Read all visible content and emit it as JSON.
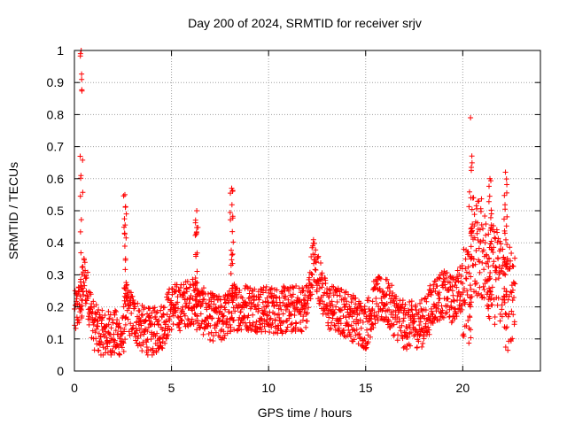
{
  "chart_data": {
    "type": "scatter",
    "title": "Day 200 of 2024, SRMTID for receiver srjv",
    "xlabel": "GPS time / hours",
    "ylabel": "SRMTID / TECUs",
    "xlim": [
      0,
      24
    ],
    "ylim": [
      0,
      1
    ],
    "x_ticks": [
      0,
      5,
      10,
      15,
      20
    ],
    "x_tick_labels": [
      "0",
      "5",
      "10",
      "15",
      "20"
    ],
    "y_ticks": [
      0,
      0.1,
      0.2,
      0.3,
      0.4,
      0.5,
      0.6,
      0.7,
      0.8,
      0.9,
      1
    ],
    "y_tick_labels": [
      "0",
      "0.1",
      "0.2",
      "0.3",
      "0.4",
      "0.5",
      "0.6",
      "0.7",
      "0.8",
      "0.9",
      "1"
    ],
    "grid": true,
    "marker": "+",
    "marker_color": "#ff0000",
    "series": [
      {
        "name": "SRMTID",
        "approx_envelope": [
          {
            "x": 0.0,
            "y": 0.17
          },
          {
            "x": 0.3,
            "y": 0.22
          },
          {
            "x": 0.35,
            "y": 1.0
          },
          {
            "x": 0.5,
            "y": 0.3
          },
          {
            "x": 1.0,
            "y": 0.14
          },
          {
            "x": 1.5,
            "y": 0.11
          },
          {
            "x": 2.0,
            "y": 0.12
          },
          {
            "x": 2.5,
            "y": 0.1
          },
          {
            "x": 2.65,
            "y": 0.55
          },
          {
            "x": 3.0,
            "y": 0.17
          },
          {
            "x": 3.5,
            "y": 0.13
          },
          {
            "x": 4.0,
            "y": 0.12
          },
          {
            "x": 4.5,
            "y": 0.14
          },
          {
            "x": 5.0,
            "y": 0.2
          },
          {
            "x": 5.5,
            "y": 0.2
          },
          {
            "x": 6.0,
            "y": 0.22
          },
          {
            "x": 6.3,
            "y": 0.5
          },
          {
            "x": 7.0,
            "y": 0.17
          },
          {
            "x": 7.5,
            "y": 0.16
          },
          {
            "x": 8.0,
            "y": 0.18
          },
          {
            "x": 8.1,
            "y": 0.57
          },
          {
            "x": 9.0,
            "y": 0.2
          },
          {
            "x": 10.0,
            "y": 0.19
          },
          {
            "x": 11.0,
            "y": 0.19
          },
          {
            "x": 12.0,
            "y": 0.2
          },
          {
            "x": 12.3,
            "y": 0.35
          },
          {
            "x": 13.0,
            "y": 0.2
          },
          {
            "x": 14.0,
            "y": 0.18
          },
          {
            "x": 15.0,
            "y": 0.14
          },
          {
            "x": 15.5,
            "y": 0.22
          },
          {
            "x": 16.0,
            "y": 0.22
          },
          {
            "x": 17.0,
            "y": 0.14
          },
          {
            "x": 18.0,
            "y": 0.15
          },
          {
            "x": 18.5,
            "y": 0.22
          },
          {
            "x": 19.0,
            "y": 0.24
          },
          {
            "x": 19.5,
            "y": 0.22
          },
          {
            "x": 20.0,
            "y": 0.27
          },
          {
            "x": 20.4,
            "y": 0.79
          },
          {
            "x": 20.5,
            "y": 0.4
          },
          {
            "x": 21.0,
            "y": 0.38
          },
          {
            "x": 21.5,
            "y": 0.3
          },
          {
            "x": 22.0,
            "y": 0.3
          },
          {
            "x": 22.2,
            "y": 0.62
          },
          {
            "x": 22.7,
            "y": 0.28
          }
        ],
        "notable_spikes": [
          {
            "x": 0.35,
            "y": 1.0
          },
          {
            "x": 2.6,
            "y": 0.55
          },
          {
            "x": 6.3,
            "y": 0.5
          },
          {
            "x": 8.1,
            "y": 0.57
          },
          {
            "x": 20.4,
            "y": 0.79
          },
          {
            "x": 21.4,
            "y": 0.6
          },
          {
            "x": 22.2,
            "y": 0.62
          }
        ]
      }
    ]
  }
}
